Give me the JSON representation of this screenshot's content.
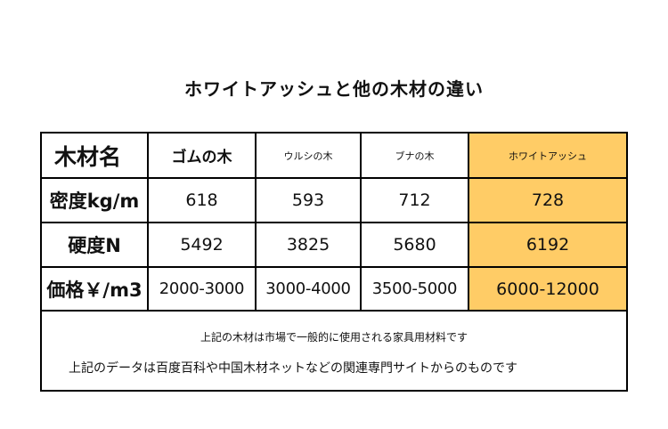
{
  "title": "ホワイトアッシュと他の木材の違い",
  "table": {
    "corner_label": "木材名",
    "woods": [
      "ゴムの木",
      "ウルシの木",
      "ブナの木",
      "ホワイトアッシュ"
    ],
    "rows": [
      {
        "label": "密度kg/m",
        "values": [
          "618",
          "593",
          "712",
          "728"
        ]
      },
      {
        "label": "硬度N",
        "values": [
          "5492",
          "3825",
          "5680",
          "6192"
        ]
      },
      {
        "label": "価格￥/m3",
        "values": [
          "2000-3000",
          "3000-4000",
          "3500-5000",
          "6000-12000"
        ]
      }
    ],
    "highlight_color": "#ffcc66"
  },
  "notes": [
    "上記の木材は市場で一般的に使用される家具用材料です",
    "上記のデータは百度百科や中国木材ネットなどの関連専門サイトからのものです"
  ]
}
